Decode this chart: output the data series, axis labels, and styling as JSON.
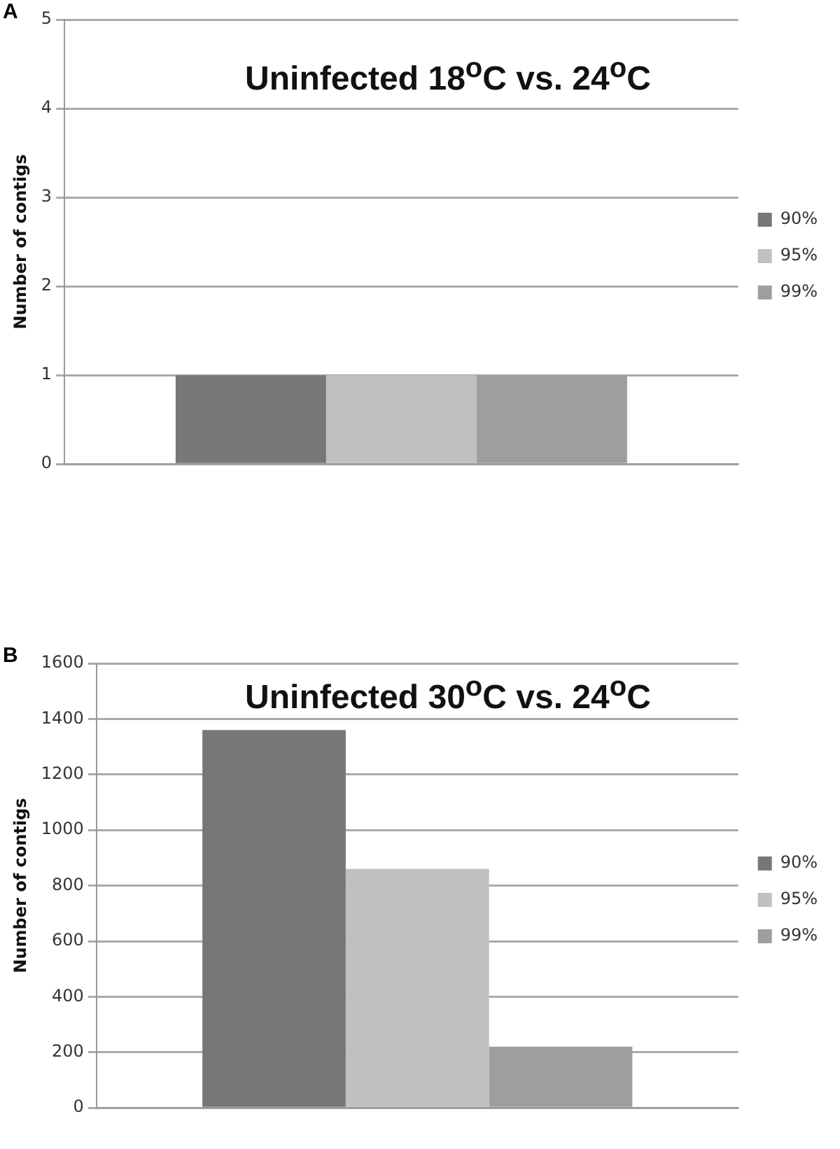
{
  "chart_data": [
    {
      "type": "bar",
      "title": "Uninfected 18$^{o}$C vs. 24$^{o}$C",
      "ylabel": "Number of contigs",
      "annotations": [
        "A"
      ],
      "categories": [
        null
      ],
      "series": [
        {
          "name": "90%",
          "color": "#777777",
          "values": [
            1
          ]
        },
        {
          "name": "95%",
          "color": "#c0c0c0",
          "values": [
            1
          ]
        },
        {
          "name": "99%",
          "color": "#9e9e9e",
          "values": [
            1
          ]
        }
      ],
      "ylim": [
        0,
        5
      ],
      "yticks": [
        0,
        1,
        2,
        3,
        4,
        5
      ],
      "grid": "y",
      "legend": "right"
    },
    {
      "type": "bar",
      "title": "Uninfected 30$^{o}$C vs. 24$^{o}$C",
      "ylabel": "Number of contigs",
      "annotations": [
        "B"
      ],
      "categories": [
        null
      ],
      "series": [
        {
          "name": "90%",
          "color": "#777777",
          "values": [
            1360
          ]
        },
        {
          "name": "95%",
          "color": "#c0c0c0",
          "values": [
            860
          ]
        },
        {
          "name": "99%",
          "color": "#9e9e9e",
          "values": [
            220
          ]
        }
      ],
      "ylim": [
        0,
        1600
      ],
      "yticks": [
        0,
        200,
        400,
        600,
        800,
        1000,
        1200,
        1400,
        1600
      ],
      "grid": "y",
      "legend": "right"
    }
  ]
}
